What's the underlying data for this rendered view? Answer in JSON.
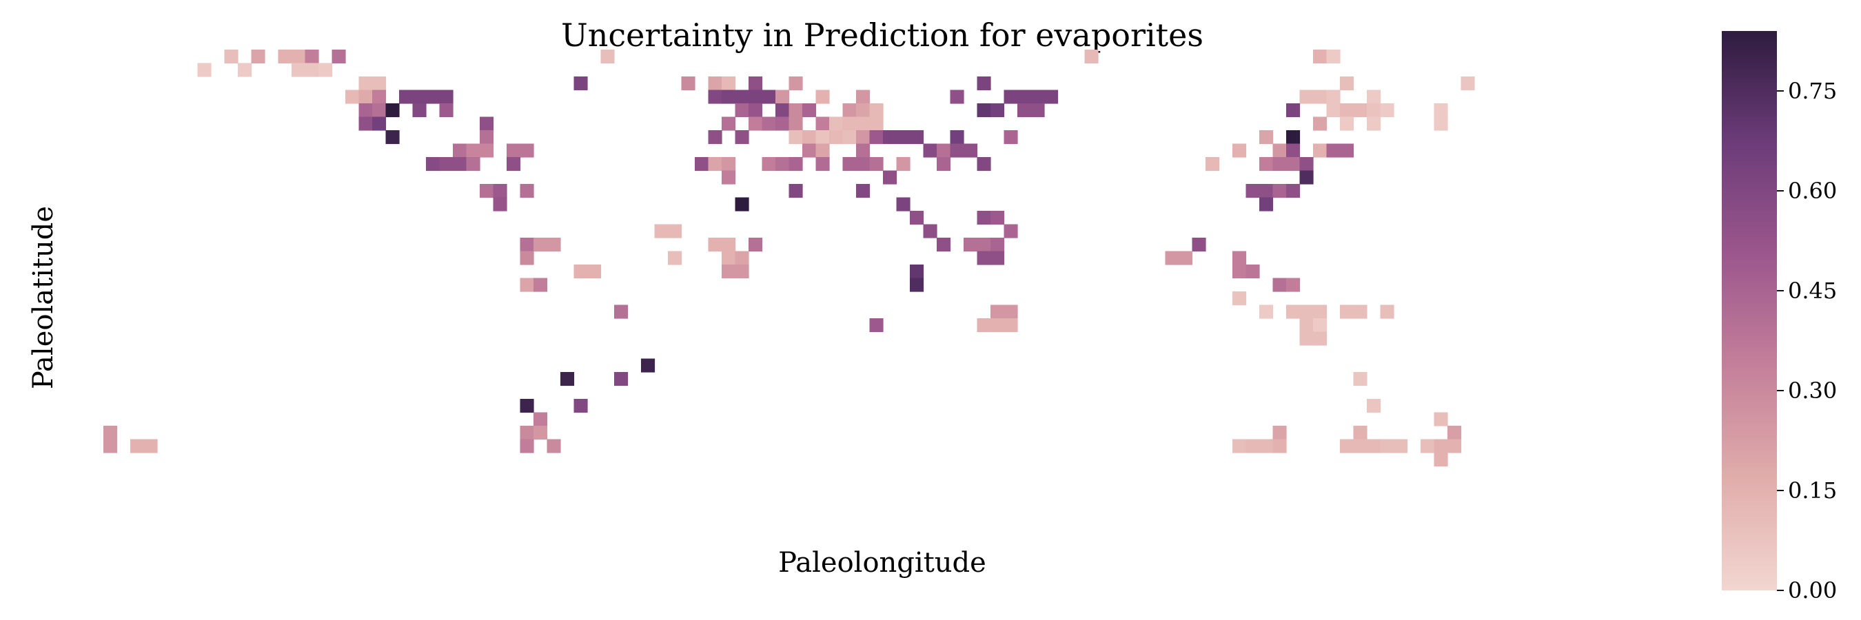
{
  "chart_data": {
    "type": "heatmap",
    "title": "Uncertainty in Prediction for evaporites",
    "xlabel": "Paleolongitude",
    "ylabel": "Paleolatitude",
    "grid": false,
    "colorbar": {
      "min": 0.0,
      "max": 0.84,
      "ticks": [
        0.0,
        0.15,
        0.3,
        0.45,
        0.6,
        0.75
      ],
      "tick_labels": [
        "0.00",
        "0.15",
        "0.30",
        "0.45",
        "0.60",
        "0.75"
      ],
      "colors": [
        "#f2d6d0",
        "#e1adab",
        "#c4809a",
        "#9c578d",
        "#6c3c79",
        "#2e1c3f"
      ]
    },
    "grid_size": {
      "columns": 120,
      "rows": 36
    },
    "cells": [
      [
        9,
        0,
        0.1
      ],
      [
        11,
        0,
        0.2
      ],
      [
        13,
        0,
        0.15
      ],
      [
        14,
        0,
        0.15
      ],
      [
        15,
        0,
        0.35
      ],
      [
        17,
        0,
        0.4
      ],
      [
        37,
        0,
        0.1
      ],
      [
        73,
        0,
        0.12
      ],
      [
        90,
        0,
        0.15
      ],
      [
        91,
        0,
        0.05
      ],
      [
        7,
        1,
        0.05
      ],
      [
        10,
        1,
        0.05
      ],
      [
        14,
        1,
        0.07
      ],
      [
        15,
        1,
        0.07
      ],
      [
        16,
        1,
        0.05
      ],
      [
        19,
        2,
        0.1
      ],
      [
        20,
        2,
        0.1
      ],
      [
        35,
        2,
        0.62
      ],
      [
        43,
        2,
        0.3
      ],
      [
        45,
        2,
        0.2
      ],
      [
        46,
        2,
        0.12
      ],
      [
        48,
        2,
        0.55
      ],
      [
        51,
        2,
        0.25
      ],
      [
        65,
        2,
        0.62
      ],
      [
        92,
        2,
        0.1
      ],
      [
        101,
        2,
        0.07
      ],
      [
        18,
        3,
        0.12
      ],
      [
        19,
        3,
        0.18
      ],
      [
        20,
        3,
        0.35
      ],
      [
        22,
        3,
        0.62
      ],
      [
        23,
        3,
        0.62
      ],
      [
        24,
        3,
        0.62
      ],
      [
        25,
        3,
        0.62
      ],
      [
        45,
        3,
        0.6
      ],
      [
        46,
        3,
        0.62
      ],
      [
        47,
        3,
        0.62
      ],
      [
        48,
        3,
        0.62
      ],
      [
        49,
        3,
        0.62
      ],
      [
        50,
        3,
        0.25
      ],
      [
        53,
        3,
        0.15
      ],
      [
        56,
        3,
        0.25
      ],
      [
        63,
        3,
        0.55
      ],
      [
        67,
        3,
        0.62
      ],
      [
        68,
        3,
        0.62
      ],
      [
        69,
        3,
        0.62
      ],
      [
        70,
        3,
        0.62
      ],
      [
        89,
        3,
        0.1
      ],
      [
        90,
        3,
        0.1
      ],
      [
        91,
        3,
        0.07
      ],
      [
        94,
        3,
        0.05
      ],
      [
        19,
        4,
        0.45
      ],
      [
        20,
        4,
        0.4
      ],
      [
        21,
        4,
        0.84
      ],
      [
        23,
        4,
        0.6
      ],
      [
        25,
        4,
        0.5
      ],
      [
        47,
        4,
        0.45
      ],
      [
        48,
        4,
        0.52
      ],
      [
        50,
        4,
        0.6
      ],
      [
        51,
        4,
        0.3
      ],
      [
        52,
        4,
        0.45
      ],
      [
        55,
        4,
        0.25
      ],
      [
        56,
        4,
        0.2
      ],
      [
        57,
        4,
        0.12
      ],
      [
        65,
        4,
        0.7
      ],
      [
        66,
        4,
        0.65
      ],
      [
        68,
        4,
        0.55
      ],
      [
        69,
        4,
        0.55
      ],
      [
        88,
        4,
        0.62
      ],
      [
        91,
        4,
        0.07
      ],
      [
        92,
        4,
        0.12
      ],
      [
        93,
        4,
        0.12
      ],
      [
        94,
        4,
        0.08
      ],
      [
        95,
        4,
        0.05
      ],
      [
        99,
        4,
        0.05
      ],
      [
        19,
        5,
        0.55
      ],
      [
        20,
        5,
        0.65
      ],
      [
        28,
        5,
        0.55
      ],
      [
        46,
        5,
        0.4
      ],
      [
        48,
        5,
        0.35
      ],
      [
        49,
        5,
        0.42
      ],
      [
        50,
        5,
        0.45
      ],
      [
        51,
        5,
        0.3
      ],
      [
        53,
        5,
        0.35
      ],
      [
        54,
        5,
        0.1
      ],
      [
        55,
        5,
        0.12
      ],
      [
        56,
        5,
        0.12
      ],
      [
        57,
        5,
        0.12
      ],
      [
        90,
        5,
        0.2
      ],
      [
        92,
        5,
        0.05
      ],
      [
        94,
        5,
        0.05
      ],
      [
        99,
        5,
        0.05
      ],
      [
        21,
        6,
        0.8
      ],
      [
        28,
        6,
        0.4
      ],
      [
        45,
        6,
        0.55
      ],
      [
        47,
        6,
        0.55
      ],
      [
        51,
        6,
        0.1
      ],
      [
        52,
        6,
        0.15
      ],
      [
        53,
        6,
        0.08
      ],
      [
        54,
        6,
        0.12
      ],
      [
        55,
        6,
        0.1
      ],
      [
        56,
        6,
        0.25
      ],
      [
        57,
        6,
        0.5
      ],
      [
        58,
        6,
        0.62
      ],
      [
        59,
        6,
        0.62
      ],
      [
        60,
        6,
        0.62
      ],
      [
        63,
        6,
        0.65
      ],
      [
        67,
        6,
        0.45
      ],
      [
        86,
        6,
        0.2
      ],
      [
        88,
        6,
        0.84
      ],
      [
        26,
        7,
        0.4
      ],
      [
        27,
        7,
        0.32
      ],
      [
        28,
        7,
        0.32
      ],
      [
        30,
        7,
        0.38
      ],
      [
        31,
        7,
        0.38
      ],
      [
        52,
        7,
        0.35
      ],
      [
        53,
        7,
        0.2
      ],
      [
        56,
        7,
        0.4
      ],
      [
        61,
        7,
        0.58
      ],
      [
        62,
        7,
        0.4
      ],
      [
        63,
        7,
        0.55
      ],
      [
        64,
        7,
        0.55
      ],
      [
        84,
        7,
        0.15
      ],
      [
        87,
        7,
        0.25
      ],
      [
        88,
        7,
        0.55
      ],
      [
        90,
        7,
        0.15
      ],
      [
        91,
        7,
        0.45
      ],
      [
        92,
        7,
        0.45
      ],
      [
        24,
        8,
        0.58
      ],
      [
        25,
        8,
        0.55
      ],
      [
        26,
        8,
        0.55
      ],
      [
        27,
        8,
        0.4
      ],
      [
        30,
        8,
        0.55
      ],
      [
        44,
        8,
        0.55
      ],
      [
        45,
        8,
        0.2
      ],
      [
        46,
        8,
        0.25
      ],
      [
        49,
        8,
        0.35
      ],
      [
        50,
        8,
        0.4
      ],
      [
        51,
        8,
        0.45
      ],
      [
        53,
        8,
        0.42
      ],
      [
        55,
        8,
        0.45
      ],
      [
        56,
        8,
        0.45
      ],
      [
        57,
        8,
        0.4
      ],
      [
        59,
        8,
        0.25
      ],
      [
        62,
        8,
        0.45
      ],
      [
        65,
        8,
        0.6
      ],
      [
        82,
        8,
        0.12
      ],
      [
        86,
        8,
        0.35
      ],
      [
        87,
        8,
        0.4
      ],
      [
        88,
        8,
        0.4
      ],
      [
        89,
        8,
        0.55
      ],
      [
        46,
        9,
        0.35
      ],
      [
        58,
        9,
        0.55
      ],
      [
        89,
        9,
        0.75
      ],
      [
        28,
        10,
        0.4
      ],
      [
        29,
        10,
        0.5
      ],
      [
        31,
        10,
        0.4
      ],
      [
        51,
        10,
        0.6
      ],
      [
        56,
        10,
        0.6
      ],
      [
        85,
        10,
        0.55
      ],
      [
        86,
        10,
        0.55
      ],
      [
        87,
        10,
        0.45
      ],
      [
        88,
        10,
        0.55
      ],
      [
        29,
        11,
        0.52
      ],
      [
        47,
        11,
        0.84
      ],
      [
        59,
        11,
        0.62
      ],
      [
        86,
        11,
        0.65
      ],
      [
        60,
        12,
        0.55
      ],
      [
        65,
        12,
        0.55
      ],
      [
        66,
        12,
        0.5
      ],
      [
        41,
        13,
        0.12
      ],
      [
        42,
        13,
        0.12
      ],
      [
        61,
        13,
        0.55
      ],
      [
        67,
        13,
        0.45
      ],
      [
        31,
        14,
        0.4
      ],
      [
        32,
        14,
        0.25
      ],
      [
        33,
        14,
        0.25
      ],
      [
        45,
        14,
        0.15
      ],
      [
        46,
        14,
        0.15
      ],
      [
        48,
        14,
        0.4
      ],
      [
        62,
        14,
        0.55
      ],
      [
        64,
        14,
        0.4
      ],
      [
        65,
        14,
        0.4
      ],
      [
        66,
        14,
        0.45
      ],
      [
        81,
        14,
        0.55
      ],
      [
        31,
        15,
        0.3
      ],
      [
        42,
        15,
        0.1
      ],
      [
        46,
        15,
        0.15
      ],
      [
        47,
        15,
        0.2
      ],
      [
        65,
        15,
        0.55
      ],
      [
        66,
        15,
        0.55
      ],
      [
        79,
        15,
        0.25
      ],
      [
        80,
        15,
        0.25
      ],
      [
        84,
        15,
        0.35
      ],
      [
        35,
        16,
        0.15
      ],
      [
        36,
        16,
        0.15
      ],
      [
        46,
        16,
        0.25
      ],
      [
        47,
        16,
        0.25
      ],
      [
        60,
        16,
        0.7
      ],
      [
        84,
        16,
        0.35
      ],
      [
        85,
        16,
        0.38
      ],
      [
        31,
        17,
        0.2
      ],
      [
        32,
        17,
        0.35
      ],
      [
        60,
        17,
        0.75
      ],
      [
        87,
        17,
        0.4
      ],
      [
        88,
        17,
        0.35
      ],
      [
        84,
        18,
        0.08
      ],
      [
        38,
        19,
        0.4
      ],
      [
        66,
        19,
        0.25
      ],
      [
        67,
        19,
        0.25
      ],
      [
        86,
        19,
        0.05
      ],
      [
        88,
        19,
        0.1
      ],
      [
        89,
        19,
        0.1
      ],
      [
        90,
        19,
        0.1
      ],
      [
        92,
        19,
        0.1
      ],
      [
        93,
        19,
        0.1
      ],
      [
        95,
        19,
        0.1
      ],
      [
        57,
        20,
        0.5
      ],
      [
        65,
        20,
        0.15
      ],
      [
        66,
        20,
        0.15
      ],
      [
        67,
        20,
        0.15
      ],
      [
        89,
        20,
        0.1
      ],
      [
        90,
        20,
        0.05
      ],
      [
        89,
        21,
        0.1
      ],
      [
        90,
        21,
        0.1
      ],
      [
        40,
        23,
        0.8
      ],
      [
        34,
        24,
        0.8
      ],
      [
        38,
        24,
        0.6
      ],
      [
        93,
        24,
        0.07
      ],
      [
        31,
        26,
        0.8
      ],
      [
        35,
        26,
        0.6
      ],
      [
        94,
        26,
        0.07
      ],
      [
        32,
        27,
        0.35
      ],
      [
        99,
        27,
        0.1
      ],
      [
        0,
        28,
        0.25
      ],
      [
        31,
        28,
        0.3
      ],
      [
        32,
        28,
        0.25
      ],
      [
        87,
        28,
        0.2
      ],
      [
        93,
        28,
        0.15
      ],
      [
        100,
        28,
        0.22
      ],
      [
        0,
        29,
        0.25
      ],
      [
        2,
        29,
        0.15
      ],
      [
        3,
        29,
        0.15
      ],
      [
        31,
        29,
        0.35
      ],
      [
        33,
        29,
        0.3
      ],
      [
        84,
        29,
        0.1
      ],
      [
        85,
        29,
        0.12
      ],
      [
        86,
        29,
        0.12
      ],
      [
        87,
        29,
        0.15
      ],
      [
        92,
        29,
        0.12
      ],
      [
        93,
        29,
        0.12
      ],
      [
        94,
        29,
        0.12
      ],
      [
        95,
        29,
        0.1
      ],
      [
        96,
        29,
        0.1
      ],
      [
        98,
        29,
        0.1
      ],
      [
        99,
        29,
        0.15
      ],
      [
        100,
        29,
        0.15
      ],
      [
        99,
        30,
        0.15
      ]
    ]
  }
}
